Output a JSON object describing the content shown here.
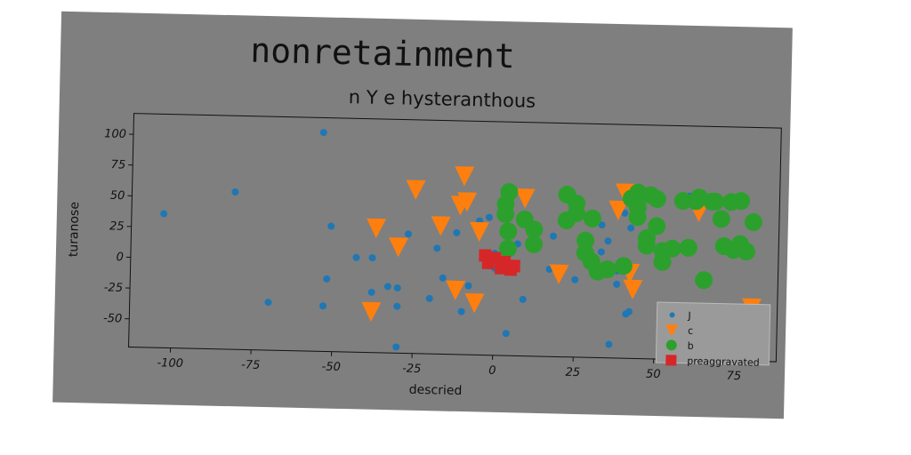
{
  "chart_data": {
    "type": "scatter",
    "title": "nonretainment",
    "subtitle": "n Y e hysteranthous",
    "xlabel": "descried",
    "ylabel": "turanose",
    "xlim": [
      -113,
      88
    ],
    "ylim": [
      -73,
      117
    ],
    "xticks": [
      -100,
      -75,
      -50,
      -25,
      0,
      25,
      50,
      75
    ],
    "yticks": [
      -50,
      -25,
      0,
      25,
      50,
      75,
      100
    ],
    "grid": false,
    "legend_position": "lower-right",
    "series": [
      {
        "name": "J",
        "marker": "circle-small",
        "color": "#1f77b4",
        "points": [
          [
            -103,
            36
          ],
          [
            -81,
            55
          ],
          [
            -54,
            105
          ],
          [
            -51,
            29
          ],
          [
            -52,
            -14
          ],
          [
            -53,
            -36
          ],
          [
            -70,
            -34
          ],
          [
            -43,
            4
          ],
          [
            -38,
            4
          ],
          [
            -38,
            -24
          ],
          [
            -33,
            -19
          ],
          [
            -30,
            -35
          ],
          [
            -30,
            -20
          ],
          [
            -30,
            -68
          ],
          [
            -27,
            24
          ],
          [
            -20,
            -28
          ],
          [
            -18,
            13
          ],
          [
            -16,
            -11
          ],
          [
            -12,
            26
          ],
          [
            -10,
            -38
          ],
          [
            -8,
            -17
          ],
          [
            -5,
            -26
          ],
          [
            -5,
            36
          ],
          [
            -2,
            39
          ],
          [
            0,
            10
          ],
          [
            0,
            -2
          ],
          [
            2,
            4
          ],
          [
            4,
            -55
          ],
          [
            7,
            18
          ],
          [
            9,
            -27
          ],
          [
            17,
            -2
          ],
          [
            18,
            25
          ],
          [
            20,
            -4
          ],
          [
            25,
            -10
          ],
          [
            33,
            35
          ],
          [
            33,
            13
          ],
          [
            35,
            22
          ],
          [
            36,
            -62
          ],
          [
            38,
            -13
          ],
          [
            38,
            -2
          ],
          [
            40,
            45
          ],
          [
            41,
            -37
          ],
          [
            42,
            -35
          ],
          [
            42,
            33
          ],
          [
            60,
            60
          ],
          [
            80,
            -26
          ]
        ]
      },
      {
        "name": "c",
        "marker": "triangle-down",
        "color": "#ff7f0e",
        "points": [
          [
            -10,
            72
          ],
          [
            -25,
            60
          ],
          [
            -9,
            51
          ],
          [
            -11,
            48
          ],
          [
            -17,
            31
          ],
          [
            -37,
            28
          ],
          [
            -30,
            13
          ],
          [
            -5,
            27
          ],
          [
            9,
            55
          ],
          [
            -6,
            -31
          ],
          [
            -12,
            -21
          ],
          [
            -38,
            -40
          ],
          [
            20,
            -6
          ],
          [
            38,
            47
          ],
          [
            40,
            61
          ],
          [
            42,
            -4
          ],
          [
            43,
            -17
          ],
          [
            63,
            47
          ],
          [
            80,
            -30
          ]
        ]
      },
      {
        "name": "b",
        "marker": "circle-large",
        "color": "#2ca02c",
        "points": [
          [
            4,
            60
          ],
          [
            3,
            50
          ],
          [
            3,
            42
          ],
          [
            4,
            28
          ],
          [
            4,
            14
          ],
          [
            9,
            38
          ],
          [
            12,
            30
          ],
          [
            12,
            18
          ],
          [
            22,
            38
          ],
          [
            22,
            59
          ],
          [
            25,
            52
          ],
          [
            25,
            44
          ],
          [
            30,
            40
          ],
          [
            28,
            22
          ],
          [
            28,
            12
          ],
          [
            30,
            5
          ],
          [
            32,
            -3
          ],
          [
            35,
            -1
          ],
          [
            40,
            2
          ],
          [
            42,
            57
          ],
          [
            44,
            42
          ],
          [
            44,
            50
          ],
          [
            44,
            62
          ],
          [
            47,
            25
          ],
          [
            47,
            19
          ],
          [
            48,
            60
          ],
          [
            50,
            57
          ],
          [
            50,
            35
          ],
          [
            52,
            15
          ],
          [
            52,
            6
          ],
          [
            55,
            17
          ],
          [
            58,
            56
          ],
          [
            60,
            18
          ],
          [
            62,
            56
          ],
          [
            63,
            59
          ],
          [
            67,
            56
          ],
          [
            68,
            56
          ],
          [
            70,
            42
          ],
          [
            71,
            20
          ],
          [
            73,
            56
          ],
          [
            74,
            17
          ],
          [
            76,
            57
          ],
          [
            76,
            22
          ],
          [
            78,
            16
          ],
          [
            80,
            40
          ],
          [
            65,
            -8
          ]
        ]
      },
      {
        "name": "preaggravated",
        "marker": "square",
        "color": "#d62728",
        "points": [
          [
            -3,
            8
          ],
          [
            0,
            6
          ],
          [
            3,
            3
          ],
          [
            6,
            0
          ],
          [
            -2,
            2
          ],
          [
            2,
            -2
          ],
          [
            5,
            -3
          ]
        ]
      }
    ]
  }
}
